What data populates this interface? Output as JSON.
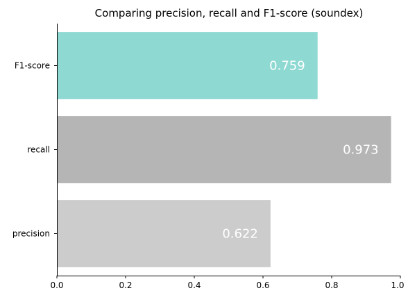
{
  "chart_data": {
    "type": "bar",
    "orientation": "horizontal",
    "title": "Comparing precision, recall and F1-score (soundex)",
    "xlabel": "",
    "ylabel": "",
    "categories": [
      "F1-score",
      "recall",
      "precision"
    ],
    "values": [
      0.759,
      0.973,
      0.622
    ],
    "data_labels": [
      "0.759",
      "0.973",
      "0.622"
    ],
    "colors": [
      "#8fd9d3",
      "#b5b5b5",
      "#cccccc"
    ],
    "xlim": [
      0,
      1.0
    ],
    "xticks": [
      0.0,
      0.2,
      0.4,
      0.6,
      0.8,
      1.0
    ],
    "xtick_labels": [
      "0.0",
      "0.2",
      "0.4",
      "0.6",
      "0.8",
      "1.0"
    ],
    "grid": false,
    "legend": "none",
    "spines": "left-bottom"
  }
}
